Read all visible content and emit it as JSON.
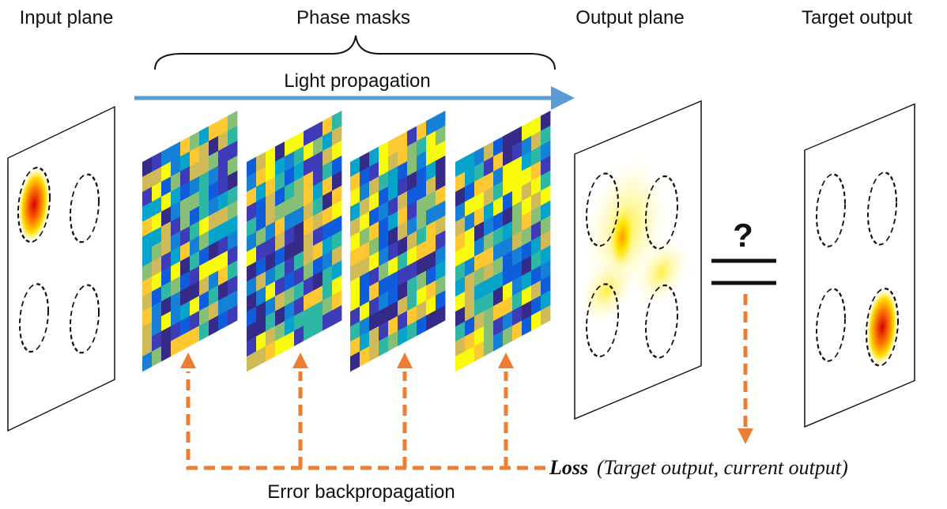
{
  "labels": {
    "input_plane": "Input plane",
    "phase_masks": "Phase masks",
    "output_plane": "Output plane",
    "target_output": "Target output",
    "light_propagation": "Light propagation",
    "question": "?",
    "error_backpropagation": "Error backpropagation",
    "loss_name": "Loss",
    "loss_args": "(Target output, current output)"
  }
}
